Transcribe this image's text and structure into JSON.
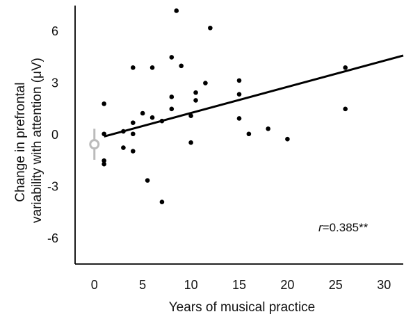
{
  "chart_data": {
    "type": "scatter",
    "xlabel": "Years of musical practice",
    "ylabel_lines": [
      "Change in prefrontal",
      "variability with attention (μV)"
    ],
    "xlim": [
      -2,
      32
    ],
    "ylim": [
      -7.5,
      7.5
    ],
    "x_ticks": [
      0,
      5,
      10,
      15,
      20,
      25,
      30
    ],
    "y_ticks": [
      -6,
      -3,
      0,
      3,
      6
    ],
    "grid": false,
    "annotation": {
      "r_symbol": "r",
      "r_value": "=0.385**"
    },
    "points": [
      {
        "x": 1,
        "y": 1.8
      },
      {
        "x": 1,
        "y": 0.05
      },
      {
        "x": 1,
        "y": -1.5
      },
      {
        "x": 1,
        "y": -1.7
      },
      {
        "x": 3,
        "y": 0.2
      },
      {
        "x": 3,
        "y": -0.75
      },
      {
        "x": 4,
        "y": 3.9
      },
      {
        "x": 4,
        "y": 0.7
      },
      {
        "x": 4,
        "y": 0.05
      },
      {
        "x": 4,
        "y": -0.95
      },
      {
        "x": 5,
        "y": 1.25
      },
      {
        "x": 5.5,
        "y": -2.65
      },
      {
        "x": 6,
        "y": 3.9
      },
      {
        "x": 6,
        "y": 1.0
      },
      {
        "x": 7,
        "y": 0.8
      },
      {
        "x": 7,
        "y": -3.9
      },
      {
        "x": 8,
        "y": 4.5
      },
      {
        "x": 8,
        "y": 2.2
      },
      {
        "x": 8,
        "y": 1.5
      },
      {
        "x": 8.5,
        "y": 7.2
      },
      {
        "x": 9,
        "y": 4.0
      },
      {
        "x": 10,
        "y": 1.1
      },
      {
        "x": 10,
        "y": -0.45
      },
      {
        "x": 10.5,
        "y": 2.45
      },
      {
        "x": 10.5,
        "y": 2.0
      },
      {
        "x": 11.5,
        "y": 3.0
      },
      {
        "x": 12,
        "y": 6.2
      },
      {
        "x": 15,
        "y": 3.15
      },
      {
        "x": 15,
        "y": 2.35
      },
      {
        "x": 15,
        "y": 0.95
      },
      {
        "x": 16,
        "y": 0.05
      },
      {
        "x": 18,
        "y": 0.35
      },
      {
        "x": 20,
        "y": -0.25
      },
      {
        "x": 26,
        "y": 3.9
      },
      {
        "x": 26,
        "y": 1.5
      }
    ],
    "reference_point": {
      "x": 0,
      "y": -0.55,
      "err_low": -1.45,
      "err_high": 0.35
    },
    "fit_line": {
      "x_start": 1,
      "y_start": -0.1,
      "x_end": 32,
      "y_end": 4.6
    }
  },
  "colors": {
    "points": "#000000",
    "fit_line": "#000000",
    "reference_point": "#bbbbbb",
    "axis": "#000000"
  }
}
